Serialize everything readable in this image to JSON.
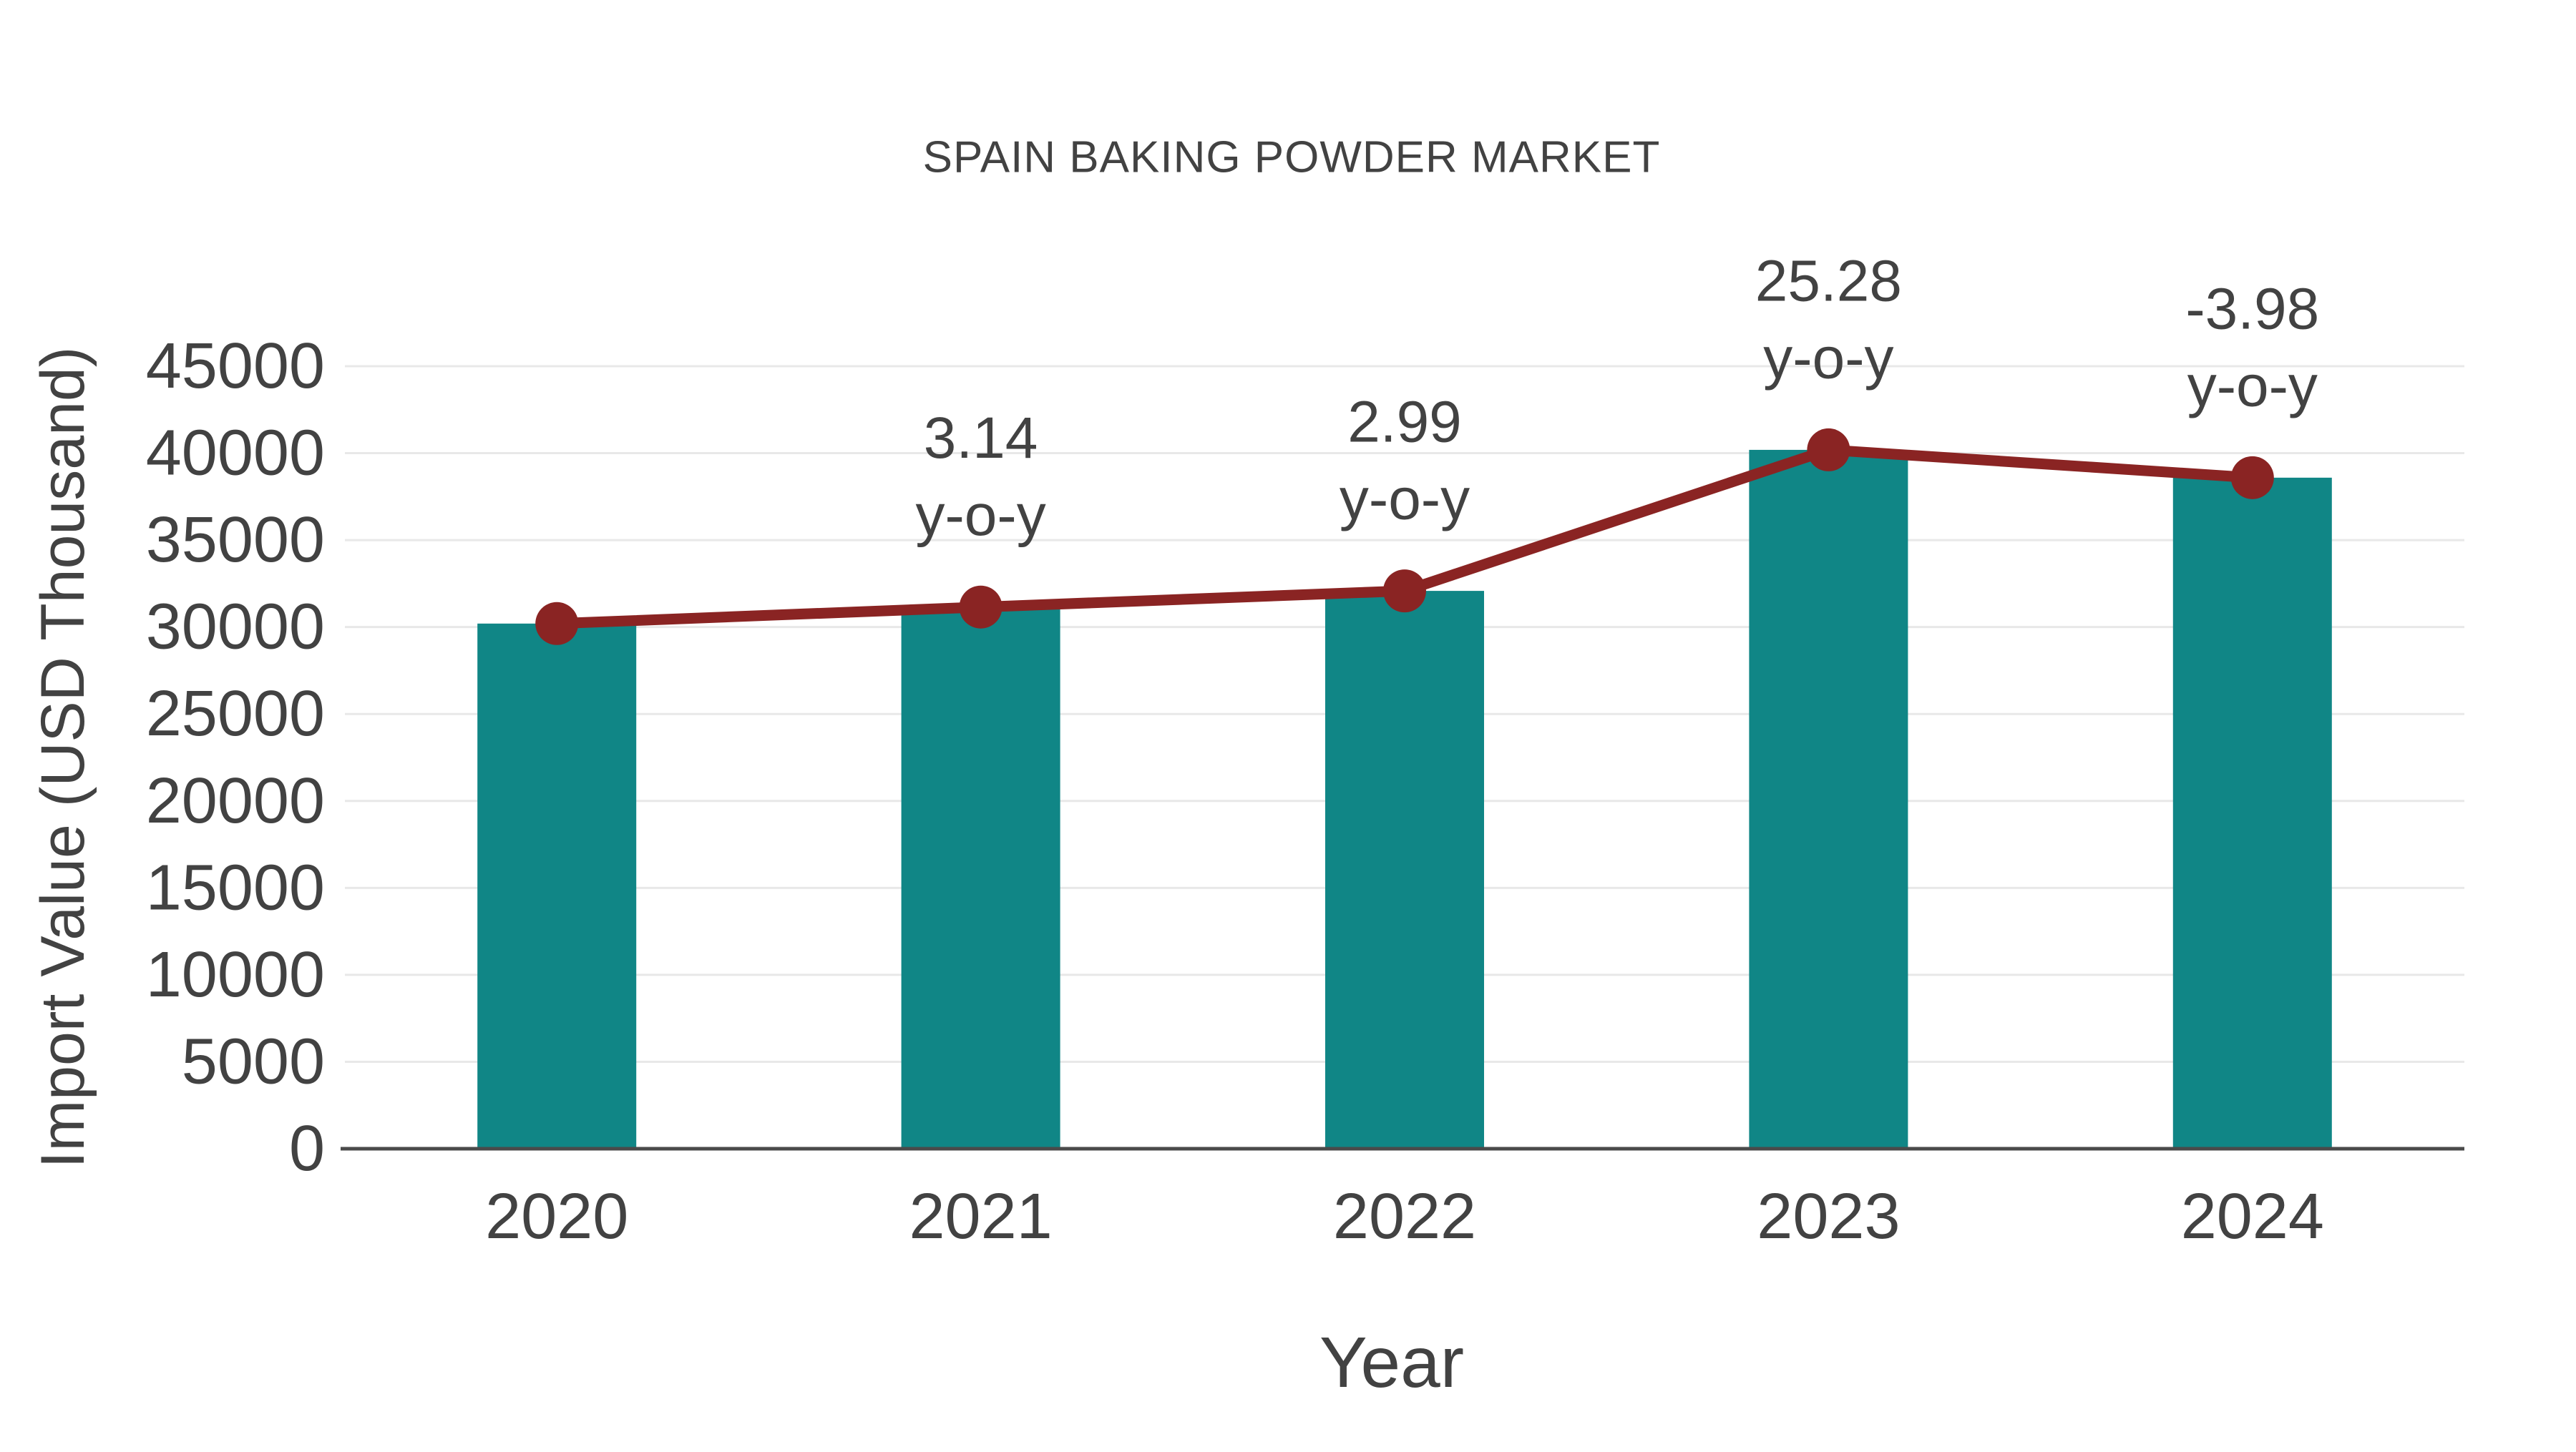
{
  "chart_data": {
    "type": "bar",
    "title": "SPAIN BAKING POWDER MARKET",
    "xlabel": "Year",
    "ylabel": "Import Value (USD Thousand)",
    "categories": [
      "2020",
      "2021",
      "2022",
      "2023",
      "2024"
    ],
    "series": [
      {
        "name": "import-value-bars",
        "type": "bar",
        "color": "#108686",
        "values": [
          30200,
          31150,
          32080,
          40190,
          38590
        ]
      },
      {
        "name": "import-value-trend-line",
        "type": "line",
        "color": "#8a2423",
        "values": [
          30200,
          31150,
          32080,
          40190,
          38590
        ]
      }
    ],
    "annotations": [
      {
        "category": "2021",
        "line1": "3.14",
        "line2": "y-o-y"
      },
      {
        "category": "2022",
        "line1": "2.99",
        "line2": "y-o-y"
      },
      {
        "category": "2023",
        "line1": "25.28",
        "line2": "y-o-y"
      },
      {
        "category": "2024",
        "line1": "-3.98",
        "line2": "y-o-y"
      }
    ],
    "ylim": [
      0,
      45000
    ],
    "ytick_step": 5000,
    "yticks": [
      "0",
      "5000",
      "10000",
      "15000",
      "20000",
      "25000",
      "30000",
      "35000",
      "40000",
      "45000"
    ],
    "grid": true,
    "legend_position": "none",
    "colors": {
      "bar": "#108686",
      "line": "#8a2423",
      "text": "#424242",
      "grid": "#e8e8e8",
      "axis": "#4a4a4a",
      "background": "#ffffff"
    }
  }
}
